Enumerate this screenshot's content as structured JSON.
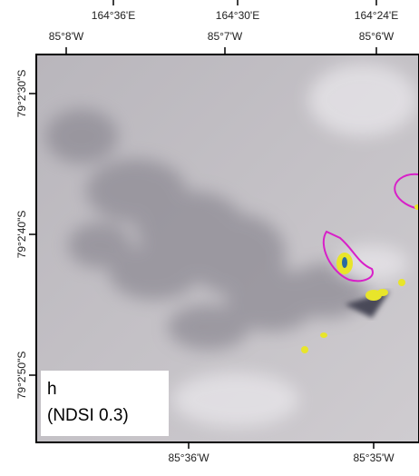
{
  "top_labels_east": [
    "164°36'E",
    "164°30'E",
    "164°24'E"
  ],
  "top_labels_west": [
    "85°8'W",
    "85°7'W",
    "85°6'W"
  ],
  "left_labels": [
    "79°2'30\"S",
    "79°2'40\"S",
    "79°2'50\"S"
  ],
  "bottom_labels": [
    "85°36'W",
    "85°35'W"
  ],
  "panel": {
    "label": "h",
    "caption": "(NDSI 0.3)"
  }
}
